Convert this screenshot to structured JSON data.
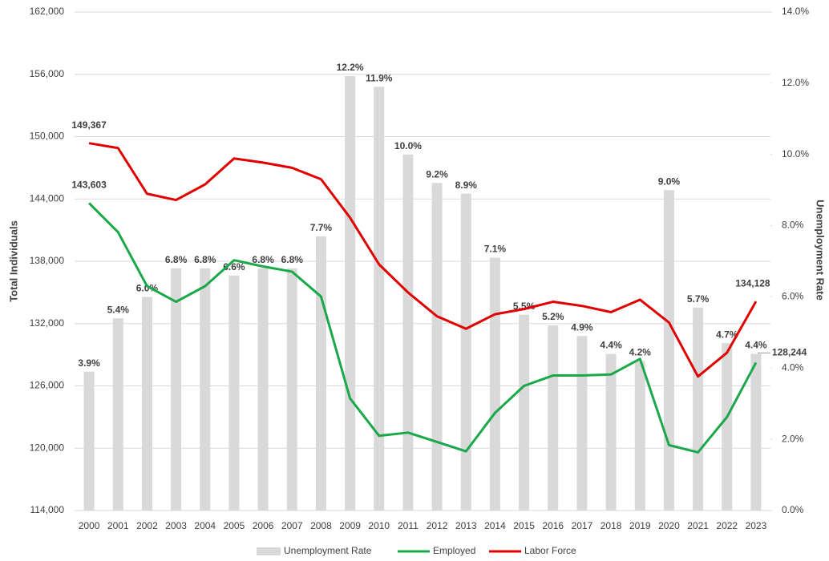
{
  "chart_data": {
    "type": "bar-line",
    "y_label": "Total Individuals",
    "y2_label": "Unemployment Rate",
    "categories": [
      "2000",
      "2001",
      "2002",
      "2003",
      "2004",
      "2005",
      "2006",
      "2007",
      "2008",
      "2009",
      "2010",
      "2011",
      "2012",
      "2013",
      "2014",
      "2015",
      "2016",
      "2017",
      "2018",
      "2019",
      "2020",
      "2021",
      "2022",
      "2023"
    ],
    "series": [
      {
        "name": "Unemployment Rate",
        "type": "bar",
        "axis": "y2",
        "color": "#d9d9d9",
        "values": [
          3.9,
          5.4,
          6.0,
          6.8,
          6.8,
          6.6,
          6.8,
          6.8,
          7.7,
          12.2,
          11.9,
          10.0,
          9.2,
          8.9,
          7.1,
          5.5,
          5.2,
          4.9,
          4.4,
          4.2,
          9.0,
          5.7,
          4.7,
          4.4
        ],
        "value_labels": [
          "3.9%",
          "5.4%",
          "6.0%",
          "6.8%",
          "6.8%",
          "6.6%",
          "6.8%",
          "6.8%",
          "7.7%",
          "12.2%",
          "11.9%",
          "10.0%",
          "9.2%",
          "8.9%",
          "7.1%",
          "5.5%",
          "5.2%",
          "4.9%",
          "4.4%",
          "4.2%",
          "9.0%",
          "5.7%",
          "4.7%",
          "4.4%"
        ]
      },
      {
        "name": "Employed",
        "type": "line",
        "color": "#1aa84a",
        "values": [
          143603,
          140800,
          135600,
          134100,
          135600,
          138100,
          137500,
          137000,
          134600,
          124800,
          121200,
          121500,
          120600,
          119700,
          123400,
          126000,
          127000,
          127000,
          127100,
          128600,
          120300,
          119600,
          123000,
          128244
        ],
        "value_labels": [
          "143,603",
          null,
          null,
          null,
          null,
          null,
          null,
          null,
          null,
          null,
          null,
          null,
          null,
          null,
          null,
          null,
          null,
          null,
          null,
          null,
          null,
          null,
          null,
          "128,244"
        ]
      },
      {
        "name": "Labor Force",
        "type": "line",
        "color": "#e00000",
        "values": [
          149367,
          148900,
          144500,
          143900,
          145400,
          147900,
          147500,
          147000,
          145900,
          142200,
          137700,
          135000,
          132700,
          131500,
          132900,
          133400,
          134100,
          133700,
          133100,
          134300,
          132100,
          126900,
          129200,
          134128
        ],
        "value_labels": [
          "149,367",
          null,
          null,
          null,
          null,
          null,
          null,
          null,
          null,
          null,
          null,
          null,
          null,
          null,
          null,
          null,
          null,
          null,
          null,
          null,
          null,
          null,
          null,
          "134,128"
        ]
      }
    ],
    "ylim": [
      114000,
      162000
    ],
    "yticks": [
      {
        "value": 114000,
        "label": "114,000"
      },
      {
        "value": 120000,
        "label": "120,000"
      },
      {
        "value": 126000,
        "label": "126,000"
      },
      {
        "value": 132000,
        "label": "132,000"
      },
      {
        "value": 138000,
        "label": "138,000"
      },
      {
        "value": 144000,
        "label": "144,000"
      },
      {
        "value": 150000,
        "label": "150,000"
      },
      {
        "value": 156000,
        "label": "156,000"
      },
      {
        "value": 162000,
        "label": "162,000"
      }
    ],
    "y2lim": [
      0,
      14
    ],
    "y2ticks": [
      {
        "value": 0,
        "label": "0.0%"
      },
      {
        "value": 2,
        "label": "2.0%"
      },
      {
        "value": 4,
        "label": "4.0%"
      },
      {
        "value": 6,
        "label": "6.0%"
      },
      {
        "value": 8,
        "label": "8.0%"
      },
      {
        "value": 10,
        "label": "10.0%"
      },
      {
        "value": 12,
        "label": "12.0%"
      },
      {
        "value": 14,
        "label": "14.0%"
      }
    ],
    "grid": true,
    "legend": "bottom"
  }
}
